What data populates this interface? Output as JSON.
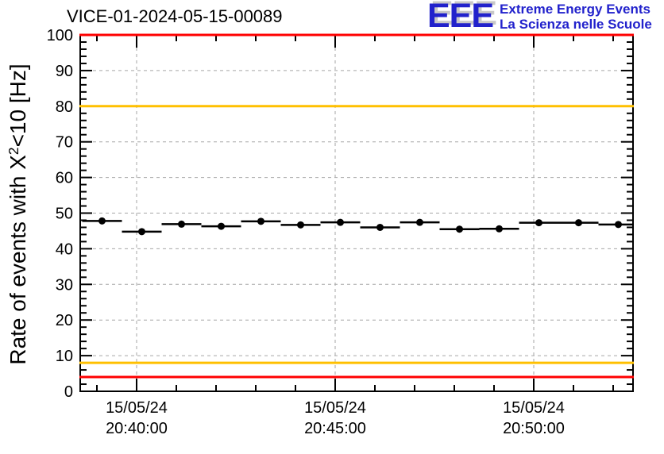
{
  "header": {
    "logo": {
      "acronym": "EEE",
      "line1": "Extreme Energy Events",
      "line2": "La Scienza nelle Scuole",
      "color": "#2222cc",
      "shadow_color": "#c8c8c8"
    }
  },
  "chart_data": {
    "type": "scatter",
    "title": "VICE-01-2024-05-15-00089",
    "ylabel_prefix": "Rate of events with X",
    "ylabel_sup": "2",
    "ylabel_suffix": "<10 [Hz]",
    "xlabel": "",
    "ylim": [
      0,
      100
    ],
    "y_major_step": 10,
    "y_minor_step": 2,
    "y_tick_labels": [
      "0",
      "10",
      "20",
      "30",
      "40",
      "50",
      "60",
      "70",
      "80",
      "90",
      "100"
    ],
    "grid": true,
    "grid_color": "#a6a6a6",
    "x_axis": {
      "t_min_rel_2040_min": -1.42,
      "t_max_rel_2040_min": 12.5,
      "major_ticks": [
        {
          "t": 0,
          "date": "15/05/24",
          "time": "20:40:00"
        },
        {
          "t": 5,
          "date": "15/05/24",
          "time": "20:45:00"
        },
        {
          "t": 10,
          "date": "15/05/24",
          "time": "20:50:00"
        }
      ],
      "minor_tick_every_min": 1
    },
    "limit_lines": [
      {
        "value": 100,
        "color": "#ff0000",
        "role": "alarm-high"
      },
      {
        "value": 80,
        "color": "#ffc000",
        "role": "warning-high"
      },
      {
        "value": 8,
        "color": "#ffc000",
        "role": "warning-low"
      },
      {
        "value": 4,
        "color": "#ff0000",
        "role": "alarm-low"
      }
    ],
    "series": [
      {
        "name": "event-rate",
        "marker": "filled-circle",
        "color": "#000000",
        "bin_halfwidth_min": 0.5,
        "points": [
          {
            "t_min": -0.87,
            "time": "20:39",
            "rate_hz": 47.8
          },
          {
            "t_min": 0.13,
            "time": "20:40",
            "rate_hz": 44.8
          },
          {
            "t_min": 1.13,
            "time": "20:41",
            "rate_hz": 46.9
          },
          {
            "t_min": 2.13,
            "time": "20:42",
            "rate_hz": 46.3
          },
          {
            "t_min": 3.13,
            "time": "20:43",
            "rate_hz": 47.7
          },
          {
            "t_min": 4.13,
            "time": "20:44",
            "rate_hz": 46.7
          },
          {
            "t_min": 5.13,
            "time": "20:45",
            "rate_hz": 47.4
          },
          {
            "t_min": 6.13,
            "time": "20:46",
            "rate_hz": 46.0
          },
          {
            "t_min": 7.13,
            "time": "20:47",
            "rate_hz": 47.4
          },
          {
            "t_min": 8.13,
            "time": "20:48",
            "rate_hz": 45.5
          },
          {
            "t_min": 9.13,
            "time": "20:49",
            "rate_hz": 45.6
          },
          {
            "t_min": 10.13,
            "time": "20:50",
            "rate_hz": 47.3
          },
          {
            "t_min": 11.13,
            "time": "20:51",
            "rate_hz": 47.3
          },
          {
            "t_min": 12.13,
            "time": "20:52",
            "rate_hz": 46.8
          }
        ]
      }
    ]
  }
}
